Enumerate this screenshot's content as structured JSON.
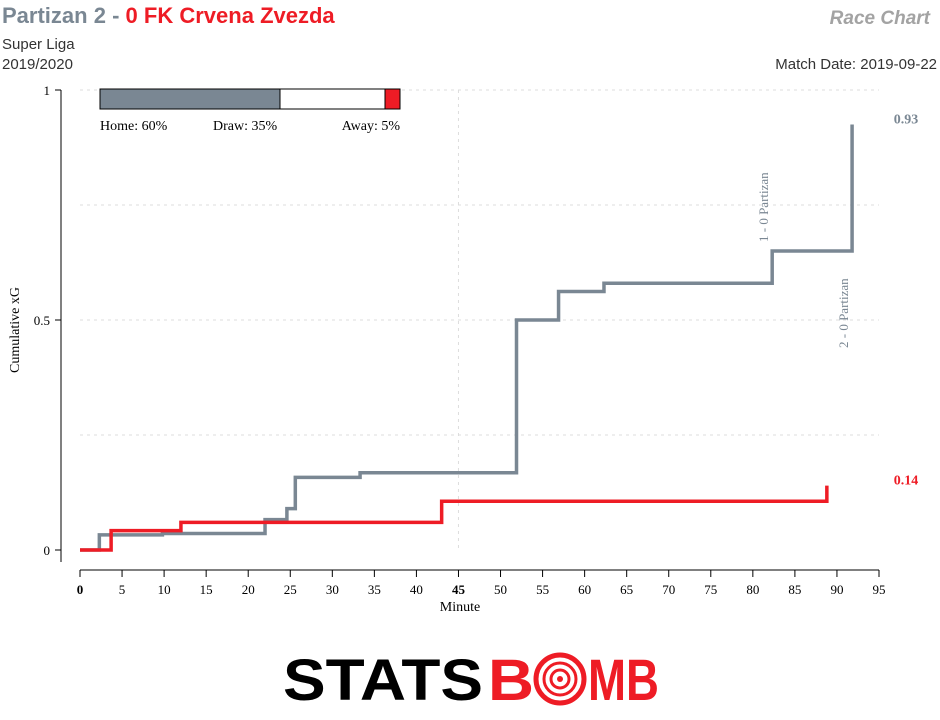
{
  "header": {
    "home_team": "Partizan",
    "home_score": "2",
    "separator": "-",
    "away_score": "0",
    "away_team": "FK Crvena Zvezda",
    "chart_label": "Race Chart",
    "league": "Super Liga",
    "season": "2019/2020",
    "match_date": "Match Date: 2019-09-22"
  },
  "probabilities": {
    "home": 0.6,
    "draw": 0.35,
    "away": 0.05,
    "home_label": "Home: 60%",
    "draw_label": "Draw: 35%",
    "away_label": "Away: 5%"
  },
  "colors": {
    "home": "#7a8793",
    "away": "#ee1c25",
    "draw": "#ffffff",
    "grid": "#dddddd"
  },
  "chart_data": {
    "type": "line",
    "step": true,
    "xlabel": "Minute",
    "ylabel": "Cumulative xG",
    "xlim": [
      0,
      95
    ],
    "ylim": [
      0,
      1
    ],
    "x_ticks": [
      0,
      5,
      10,
      15,
      20,
      25,
      30,
      35,
      40,
      45,
      50,
      55,
      60,
      65,
      70,
      75,
      80,
      85,
      90,
      95
    ],
    "x_tick_labels": [
      "0",
      "5",
      "10",
      "15",
      "20",
      "25",
      "30",
      "35",
      "40",
      "45",
      "50",
      "55",
      "60",
      "65",
      "70",
      "75",
      "80",
      "85",
      "90",
      "95"
    ],
    "y_ticks": [
      0,
      0.5,
      1
    ],
    "y_tick_labels": [
      "0",
      "0.5",
      "1"
    ],
    "grid": true,
    "series": [
      {
        "name": "Partizan",
        "color": "#7a8793",
        "final_label": "0.93",
        "x": [
          0,
          2.3,
          9.8,
          22,
          24.6,
          25.6,
          33.3,
          51.9,
          56.9,
          62.3,
          82.3,
          91.8,
          91.8
        ],
        "y": [
          0,
          0.033,
          0.036,
          0.066,
          0.09,
          0.158,
          0.168,
          0.5,
          0.562,
          0.58,
          0.65,
          0.65,
          0.925
        ]
      },
      {
        "name": "FK Crvena Zvezda",
        "color": "#ee1c25",
        "final_label": "0.14",
        "x": [
          0,
          3.7,
          12,
          43,
          88.8,
          88.8
        ],
        "y": [
          0,
          0.042,
          0.06,
          0.106,
          0.106,
          0.14
        ]
      }
    ],
    "annotations": [
      {
        "text": "1 - 0 Partizan",
        "x": 82.3
      },
      {
        "text": "2 - 0 Partizan",
        "x": 91.8
      }
    ]
  },
  "branding": {
    "logo_left": "STATS",
    "logo_right": "BMB"
  }
}
